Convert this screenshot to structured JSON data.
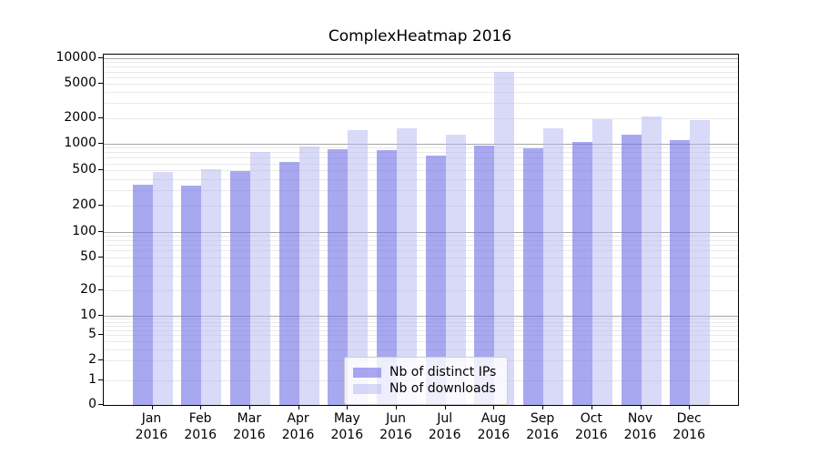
{
  "title": "ComplexHeatmap 2016",
  "chart_data": {
    "type": "bar",
    "title": "ComplexHeatmap 2016",
    "xlabel": "",
    "ylabel": "",
    "yscale": "symlog",
    "ylim": [
      0,
      10000
    ],
    "grid": "horizontal, log minor + major gridlines",
    "legend_position": "lower center, inside plot",
    "year": "2016",
    "categories": [
      "Jan",
      "Feb",
      "Mar",
      "Apr",
      "May",
      "Jun",
      "Jul",
      "Aug",
      "Sep",
      "Oct",
      "Nov",
      "Dec"
    ],
    "yticks": [
      "0",
      "1",
      "2",
      "5",
      "10",
      "20",
      "50",
      "100",
      "200",
      "500",
      "1000",
      "2000",
      "5000",
      "10000"
    ],
    "ytick_values": [
      0,
      1,
      2,
      5,
      10,
      20,
      50,
      100,
      200,
      500,
      1000,
      2000,
      5000,
      10000
    ],
    "series": [
      {
        "name": "Nb of distinct IPs",
        "color": "#a8a8f0",
        "color_rgba": "rgba(115,115,231,0.62)",
        "values": [
          345,
          335,
          495,
          620,
          875,
          855,
          735,
          950,
          880,
          1060,
          1280,
          1100
        ]
      },
      {
        "name": "Nb of downloads",
        "color": "#d9d9f8",
        "color_rgba": "rgba(179,179,241,0.5)",
        "values": [
          480,
          520,
          815,
          940,
          1430,
          1500,
          1280,
          6950,
          1520,
          1930,
          2090,
          1870
        ]
      }
    ]
  },
  "colors": {
    "background": "#ffffff",
    "axis": "#000000",
    "major_grid": "#a6a6a6",
    "minor_grid": "#e9e9e9",
    "legend_border": "#cccccc"
  }
}
